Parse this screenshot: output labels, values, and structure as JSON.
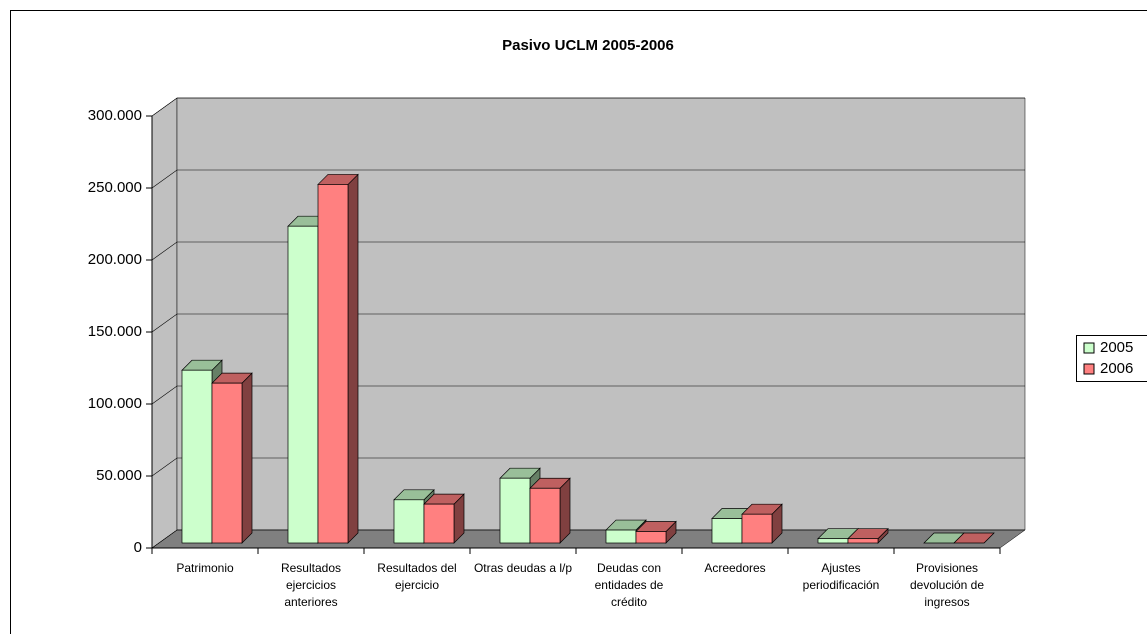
{
  "chart_data": {
    "type": "bar3d",
    "title": "Pasivo UCLM 2005-2006",
    "categories": [
      "Patrimonio",
      "Resultados ejercicios anteriores",
      "Resultados del ejercicio",
      "Otras deudas a l/p",
      "Deudas con entidades de crédito",
      "Acreedores",
      "Ajustes periodificación",
      "Provisiones devolución de ingresos"
    ],
    "series": [
      {
        "name": "2005",
        "color": "#ccffcc",
        "values": [
          120000,
          220000,
          30000,
          45000,
          9000,
          17000,
          3000,
          0
        ]
      },
      {
        "name": "2006",
        "color": "#ff8080",
        "values": [
          111000,
          249000,
          27000,
          38000,
          8000,
          20000,
          3000,
          0
        ]
      }
    ],
    "ylim": [
      0,
      300000
    ],
    "yticks": [
      0,
      {
        "value": 50000,
        "label": "50.000"
      },
      {
        "value": 100000,
        "label": "100.000"
      },
      {
        "value": 150000,
        "label": "150.000"
      },
      {
        "value": 200000,
        "label": "200.000"
      },
      {
        "value": 250000,
        "label": "250.000"
      },
      {
        "value": 300000,
        "label": "300.000"
      }
    ],
    "grid": true,
    "legend": "right"
  }
}
